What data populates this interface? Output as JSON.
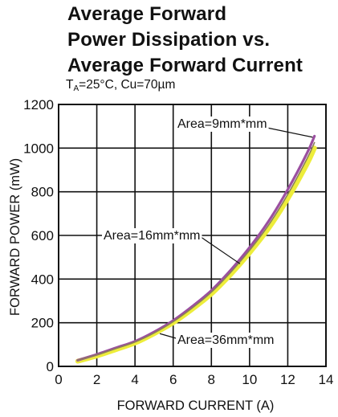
{
  "title": {
    "line1": "Average Forward",
    "line2": "Power Dissipation vs.",
    "line3": "Average Forward Current"
  },
  "subtitle": {
    "t_symbol": "T",
    "t_subscript": "A",
    "conditions": "=25°C, Cu=70µm"
  },
  "chart_data": {
    "type": "line",
    "xlabel": "FORWARD CURRENT (A)",
    "ylabel": "FORWARD POWER (mW)",
    "xlim": [
      0,
      14
    ],
    "ylim": [
      0,
      1200
    ],
    "x_ticks": [
      0,
      2,
      4,
      6,
      8,
      10,
      12,
      14
    ],
    "y_ticks": [
      0,
      200,
      400,
      600,
      800,
      1000,
      1200
    ],
    "grid": true,
    "series": [
      {
        "name": "Area=9mm*mm",
        "color": "#9b4fa0",
        "x": [
          1,
          2,
          3,
          4,
          5,
          6,
          7,
          8,
          9,
          10,
          11,
          12,
          13,
          13.4
        ],
        "y": [
          28,
          55,
          85,
          115,
          158,
          210,
          275,
          348,
          440,
          545,
          665,
          810,
          975,
          1055
        ]
      },
      {
        "name": "Area=16mm*mm",
        "color": "#8a7f5a",
        "x": [
          1,
          2,
          3,
          4,
          5,
          6,
          7,
          8,
          9,
          10,
          11,
          12,
          13,
          13.4
        ],
        "y": [
          28,
          53,
          82,
          112,
          153,
          205,
          268,
          340,
          430,
          532,
          648,
          788,
          950,
          1025
        ]
      },
      {
        "name": "Area=36mm*mm",
        "color": "#eded3a",
        "x": [
          1,
          2,
          3,
          4,
          5,
          6,
          7,
          8,
          9,
          10,
          11,
          12,
          13,
          13.4
        ],
        "y": [
          24,
          48,
          77,
          107,
          150,
          200,
          262,
          332,
          420,
          520,
          632,
          768,
          925,
          1000
        ]
      }
    ],
    "annotations": [
      {
        "text": "Area=9mm*mm",
        "target_x": 13.3,
        "target_y": 1050
      },
      {
        "text": "Area=16mm*mm",
        "target_x": 9.5,
        "target_y": 470
      },
      {
        "text": "Area=36mm*mm",
        "target_x": 5.3,
        "target_y": 150
      }
    ]
  }
}
